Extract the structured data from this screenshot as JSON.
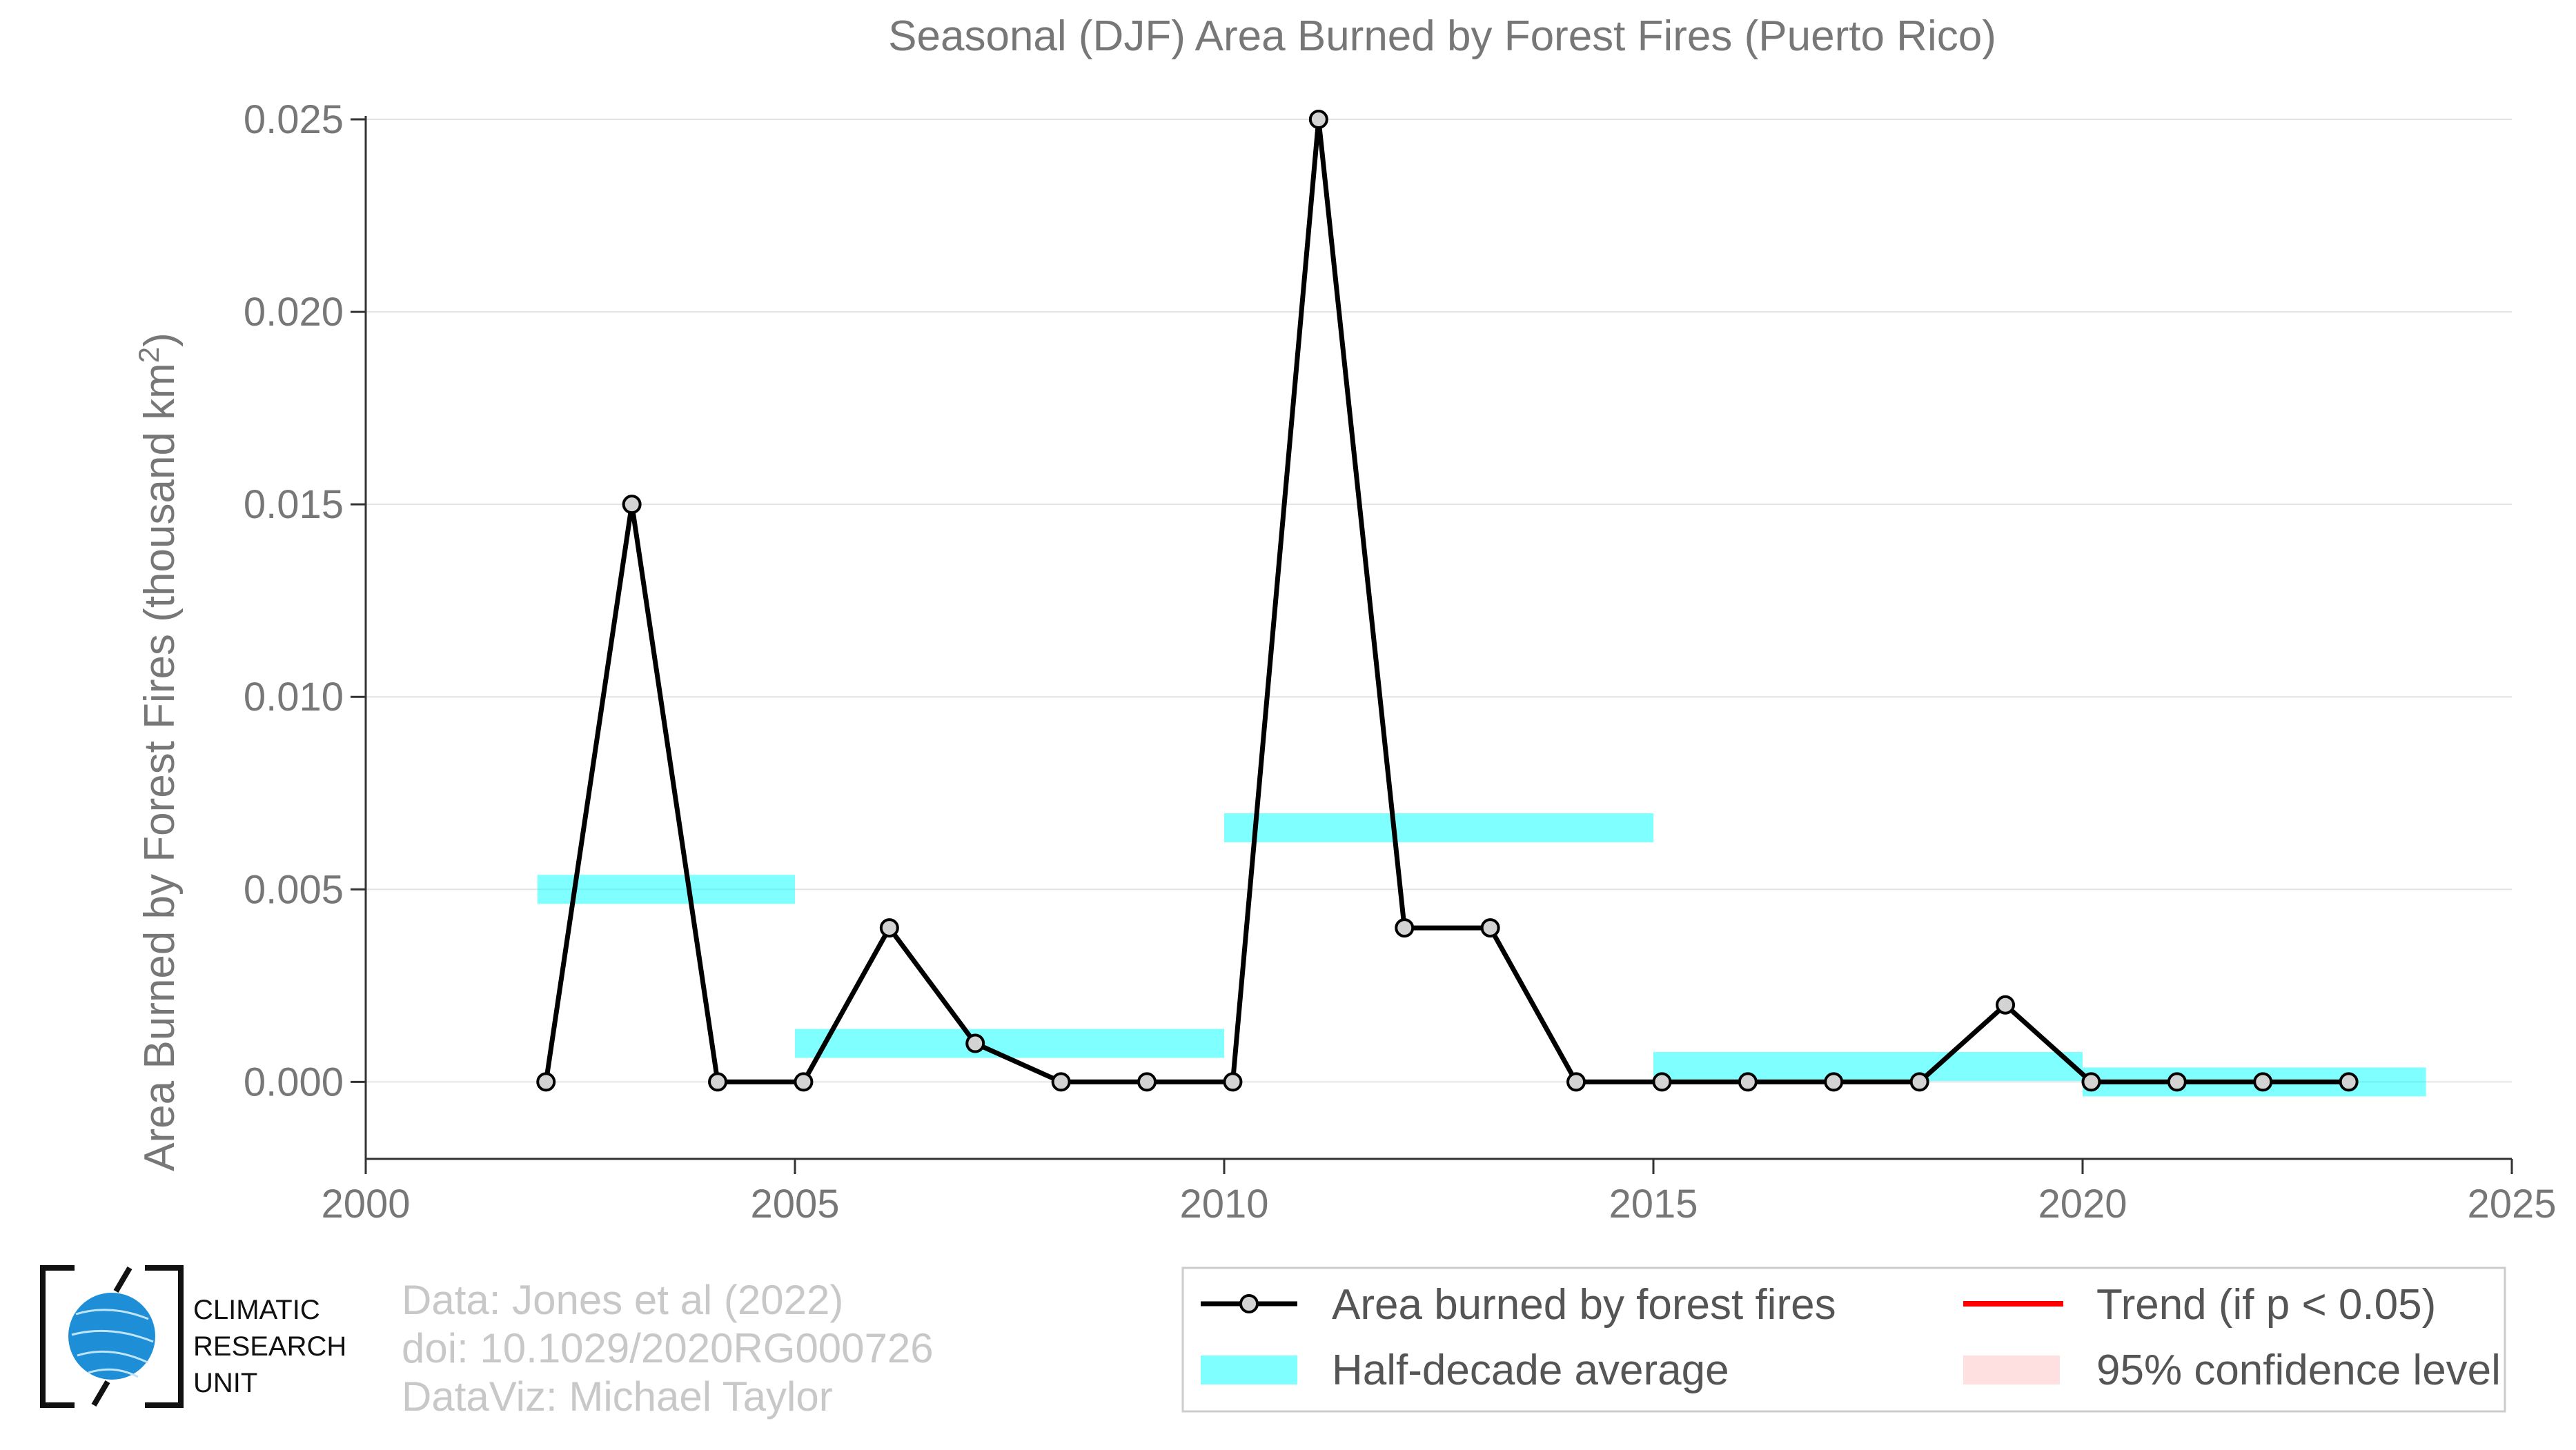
{
  "chart_data": {
    "type": "line",
    "title": "Seasonal (DJF) Area Burned by Forest Fires (Puerto Rico)",
    "ylabel": "Area Burned by Forest Fires (thousand km",
    "ylabel_superscript": "2",
    "ylabel_suffix": ")",
    "xlim": [
      2000,
      2025
    ],
    "ylim": [
      -0.002,
      0.025
    ],
    "x_ticks": [
      2000,
      2005,
      2010,
      2015,
      2020,
      2025
    ],
    "y_ticks": [
      0.0,
      0.005,
      0.01,
      0.015,
      0.02,
      0.025
    ],
    "x_tick_labels": [
      "2000",
      "2005",
      "2010",
      "2015",
      "2020",
      "2025"
    ],
    "y_tick_labels": [
      "0.000",
      "0.005",
      "0.010",
      "0.015",
      "0.020",
      "0.025"
    ],
    "grid": true,
    "series": [
      {
        "name": "Area burned by forest fires",
        "color": "#000000",
        "marker_fill": "#d3d3d3",
        "x": [
          2002.1,
          2003.1,
          2004.1,
          2005.1,
          2006.1,
          2007.1,
          2008.1,
          2009.1,
          2010.1,
          2011.1,
          2012.1,
          2013.1,
          2014.1,
          2015.1,
          2016.1,
          2017.1,
          2018.1,
          2019.1,
          2020.1,
          2021.1,
          2022.1,
          2023.1
        ],
        "y": [
          0.0,
          0.015,
          0.0,
          0.0,
          0.004,
          0.001,
          0.0,
          0.0,
          0.0,
          0.025,
          0.004,
          0.004,
          0.0,
          0.0,
          0.0,
          0.0,
          0.0,
          0.002,
          0.0,
          0.0,
          0.0,
          0.0
        ]
      }
    ],
    "half_decade_averages": {
      "name": "Half-decade average",
      "color": "#00ffff",
      "segments": [
        {
          "x_start": 2002,
          "x_end": 2005,
          "value": 0.005
        },
        {
          "x_start": 2005,
          "x_end": 2010,
          "value": 0.001
        },
        {
          "x_start": 2010,
          "x_end": 2015,
          "value": 0.0066
        },
        {
          "x_start": 2015,
          "x_end": 2020,
          "value": 0.0004
        },
        {
          "x_start": 2020,
          "x_end": 2024,
          "value": 0.0
        }
      ]
    },
    "legend": {
      "placement": "bottom-right",
      "items": [
        {
          "label": "Area burned by forest fires",
          "kind": "line-marker",
          "color": "#000000"
        },
        {
          "label": "Trend (if p < 0.05)",
          "kind": "line",
          "color": "#ff0000"
        },
        {
          "label": "Half-decade average",
          "kind": "band",
          "color": "#00ffff"
        },
        {
          "label": "95% confidence level",
          "kind": "band",
          "color": "#ffcccc"
        }
      ]
    }
  },
  "credits": {
    "line1": "Data: Jones et al (2022)",
    "line2": "doi: 10.1029/2020RG000726",
    "line3": "DataViz: Michael Taylor"
  },
  "logo": {
    "line1": "CLIMATIC",
    "line2": "RESEARCH",
    "line3": "UNIT",
    "globe_color": "#1e8fd6"
  }
}
